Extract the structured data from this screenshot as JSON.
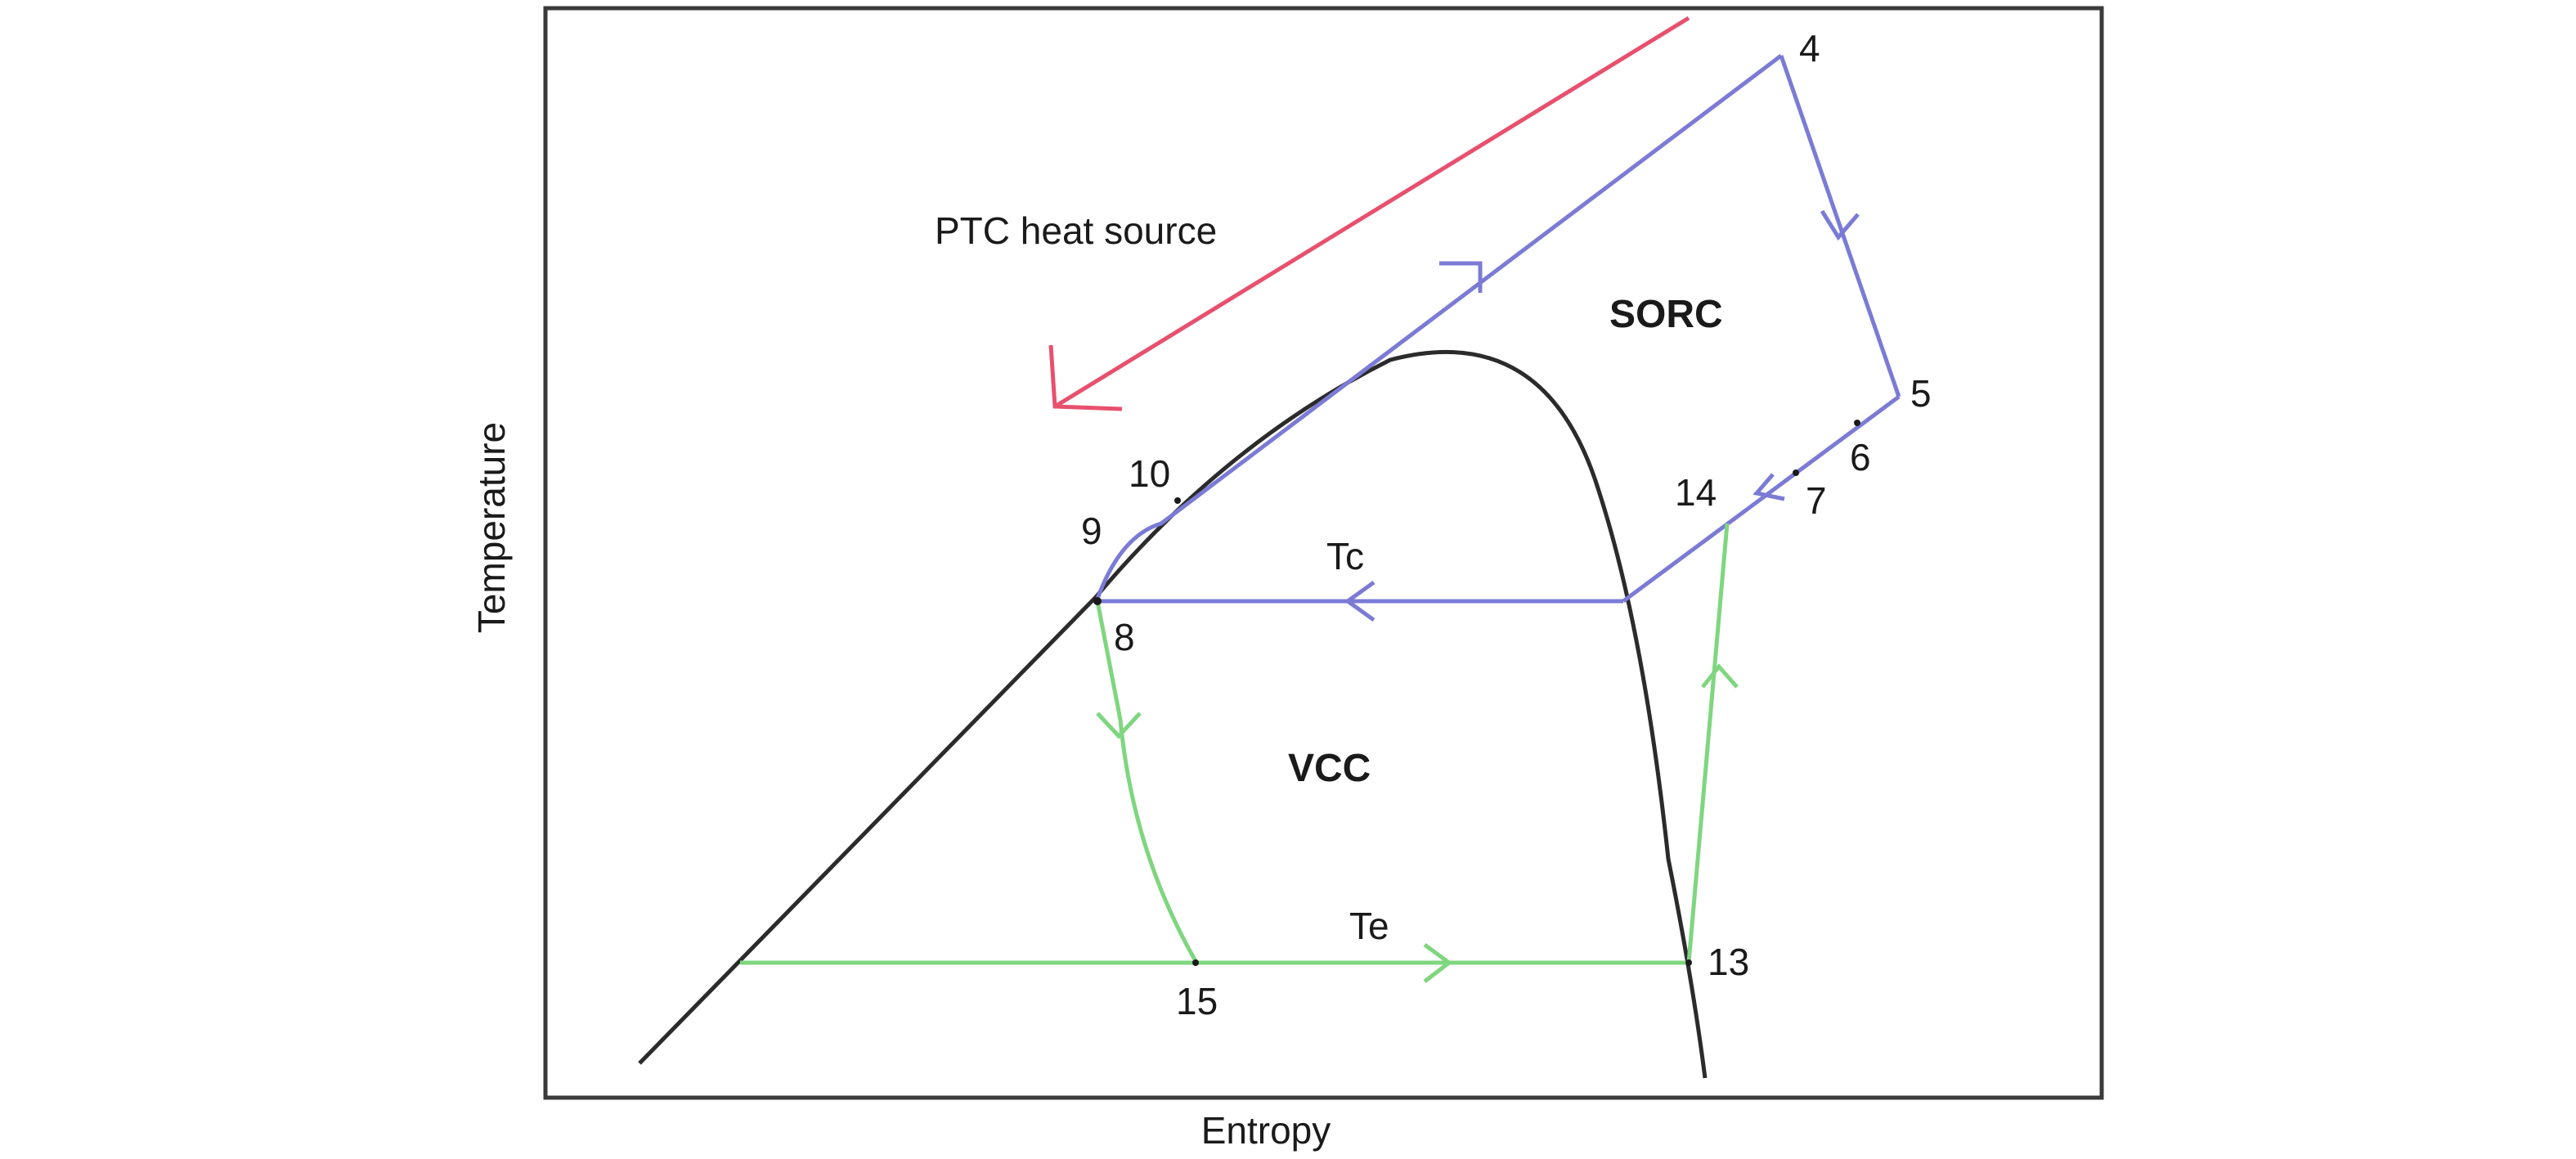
{
  "axes": {
    "x_title": "Entropy",
    "y_title": "Temperature"
  },
  "annotations": {
    "heat_source": "PTC heat source",
    "condensing_temp": "Tc",
    "evaporating_temp": "Te"
  },
  "regions": {
    "upper_cycle": "SORC",
    "lower_cycle": "VCC"
  },
  "state_points": {
    "p4": "4",
    "p5": "5",
    "p6": "6",
    "p7": "7",
    "p8": "8",
    "p9": "9",
    "p10": "10",
    "p13": "13",
    "p14": "14",
    "p15": "15"
  },
  "colors": {
    "saturation_dome": "#2b2b2b",
    "sorc_cycle": "#7b7bd6",
    "vcc_cycle": "#7fd67f",
    "heat_source": "#e8506e",
    "frame": "#3a3a3a"
  }
}
